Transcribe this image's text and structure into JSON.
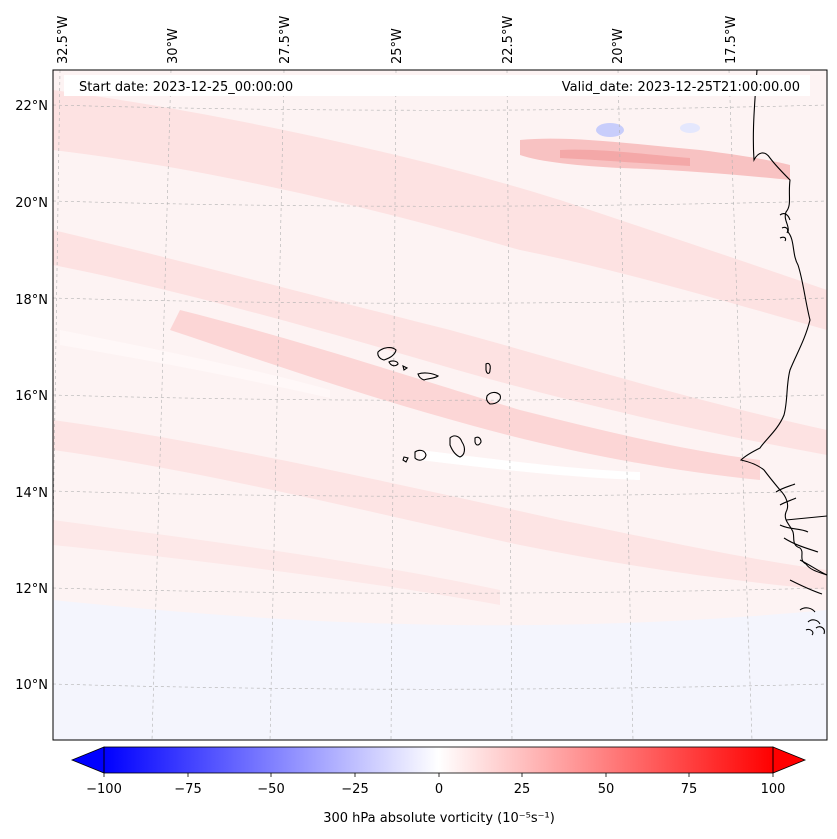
{
  "map": {
    "projection": "lambert-conformal",
    "start_label": "Start date: 2023-12-25_00:00:00",
    "valid_label": "Valid_date: 2023-12-25T21:00:00.00",
    "longitude_labels": [
      "32.5°W",
      "30°W",
      "27.5°W",
      "25°W",
      "22.5°W",
      "20°W",
      "17.5°W"
    ],
    "latitude_labels": [
      "22°N",
      "20°N",
      "18°N",
      "16°N",
      "14°N",
      "12°N",
      "10°N"
    ],
    "gridlines": true,
    "field_colors": {
      "background": "#fdf3f3",
      "band_light": "#fde2e2",
      "band_medium": "#fbd0d0",
      "band_strong": "#f8b4b4",
      "negative_light": "#eef0fd",
      "negative_medium": "#c8cdfb",
      "coastline": "#000000"
    }
  },
  "colorbar": {
    "label": "300 hPa absolute vorticity (10⁻⁵s⁻¹)",
    "ticks": [
      "−100",
      "−75",
      "−50",
      "−25",
      "0",
      "25",
      "50",
      "75",
      "100"
    ],
    "range": [
      -100,
      100
    ],
    "colormap": "bwr",
    "extend": "both"
  }
}
